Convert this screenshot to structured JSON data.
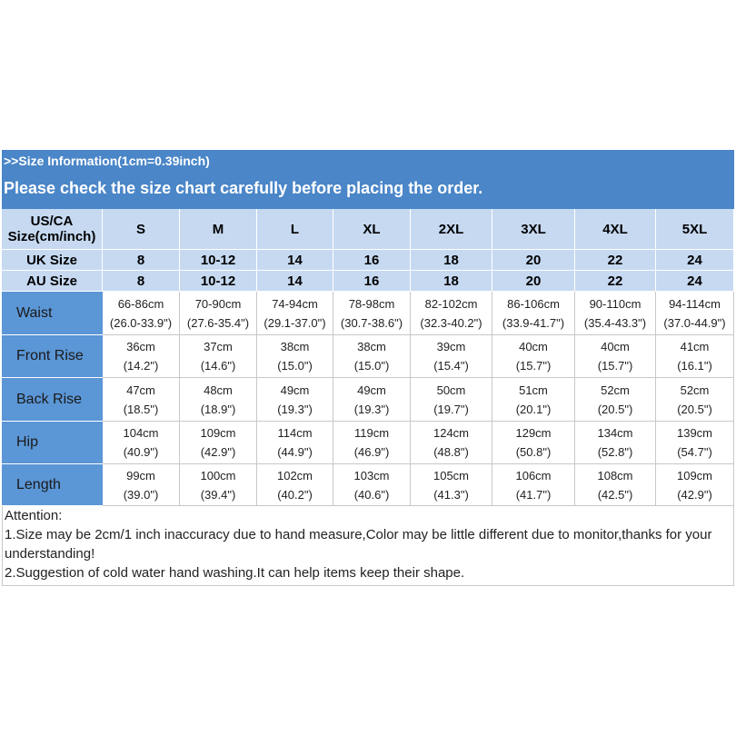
{
  "header": {
    "info": ">>Size Information(1cm=0.39inch)",
    "notice": "Please check the size chart carefully before placing the order."
  },
  "table": {
    "corner": [
      "US/CA",
      "Size(cm/inch)"
    ],
    "sizes": [
      "S",
      "M",
      "L",
      "XL",
      "2XL",
      "3XL",
      "4XL",
      "5XL"
    ],
    "size_rows": [
      {
        "label": "UK Size",
        "values": [
          "8",
          "10-12",
          "14",
          "16",
          "18",
          "20",
          "22",
          "24"
        ]
      },
      {
        "label": "AU Size",
        "values": [
          "8",
          "10-12",
          "14",
          "16",
          "18",
          "20",
          "22",
          "24"
        ]
      }
    ],
    "rows": [
      {
        "label": "Waist",
        "cells": [
          [
            "66-86cm",
            "(26.0-33.9\")"
          ],
          [
            "70-90cm",
            "(27.6-35.4\")"
          ],
          [
            "74-94cm",
            "(29.1-37.0\")"
          ],
          [
            "78-98cm",
            "(30.7-38.6\")"
          ],
          [
            "82-102cm",
            "(32.3-40.2\")"
          ],
          [
            "86-106cm",
            "(33.9-41.7\")"
          ],
          [
            "90-110cm",
            "(35.4-43.3\")"
          ],
          [
            "94-114cm",
            "(37.0-44.9\")"
          ]
        ]
      },
      {
        "label": "Front Rise",
        "cells": [
          [
            "36cm",
            "(14.2\")"
          ],
          [
            "37cm",
            "(14.6\")"
          ],
          [
            "38cm",
            "(15.0\")"
          ],
          [
            "38cm",
            "(15.0\")"
          ],
          [
            "39cm",
            "(15.4\")"
          ],
          [
            "40cm",
            "(15.7\")"
          ],
          [
            "40cm",
            "(15.7\")"
          ],
          [
            "41cm",
            "(16.1\")"
          ]
        ]
      },
      {
        "label": "Back Rise",
        "cells": [
          [
            "47cm",
            "(18.5\")"
          ],
          [
            "48cm",
            "(18.9\")"
          ],
          [
            "49cm",
            "(19.3\")"
          ],
          [
            "49cm",
            "(19.3\")"
          ],
          [
            "50cm",
            "(19.7\")"
          ],
          [
            "51cm",
            "(20.1\")"
          ],
          [
            "52cm",
            "(20.5\")"
          ],
          [
            "52cm",
            "(20.5\")"
          ]
        ]
      },
      {
        "label": "Hip",
        "cells": [
          [
            "104cm",
            "(40.9\")"
          ],
          [
            "109cm",
            "(42.9\")"
          ],
          [
            "114cm",
            "(44.9\")"
          ],
          [
            "119cm",
            "(46.9\")"
          ],
          [
            "124cm",
            "(48.8\")"
          ],
          [
            "129cm",
            "(50.8\")"
          ],
          [
            "134cm",
            "(52.8\")"
          ],
          [
            "139cm",
            "(54.7\")"
          ]
        ]
      },
      {
        "label": "Length",
        "cells": [
          [
            "99cm",
            "(39.0\")"
          ],
          [
            "100cm",
            "(39.4\")"
          ],
          [
            "102cm",
            "(40.2\")"
          ],
          [
            "103cm",
            "(40.6\")"
          ],
          [
            "105cm",
            "(41.3\")"
          ],
          [
            "106cm",
            "(41.7\")"
          ],
          [
            "108cm",
            "(42.5\")"
          ],
          [
            "109cm",
            "(42.9\")"
          ]
        ]
      }
    ]
  },
  "attention": {
    "title": "Attention:",
    "lines": [
      "1.Size may be 2cm/1 inch inaccuracy due to hand measure,Color may be little different due to monitor,thanks for your understanding!",
      "2.Suggestion of cold water hand washing.It can help items keep their shape."
    ]
  }
}
